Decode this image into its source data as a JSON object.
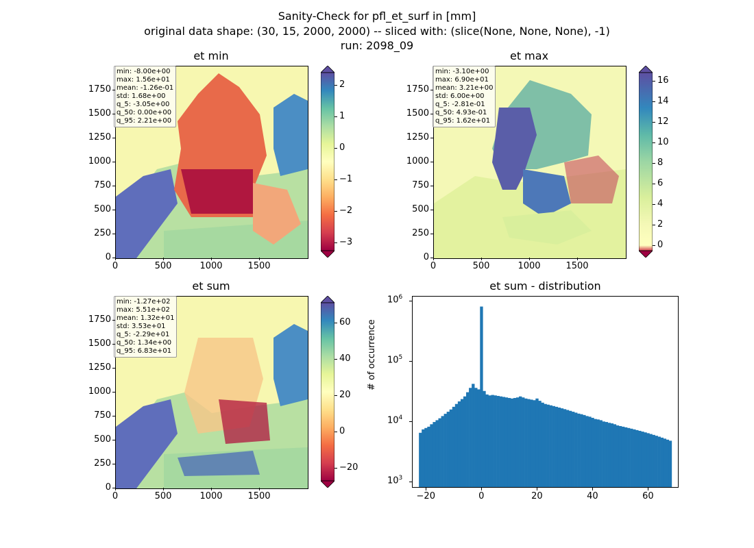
{
  "figure": {
    "title_line1": "Sanity-Check for pfl_et_surf in [mm]",
    "title_line2": "original data shape: (30, 15, 2000, 2000) -- sliced with: (slice(None, None, None), -1)",
    "title_line3": "run: 2098_09"
  },
  "panels": {
    "et_min": {
      "title": "et min",
      "stats": [
        "min: -8.00e+00",
        "max: 1.56e+01",
        "mean: -1.26e-01",
        "std: 1.68e+00",
        "q_5: -3.05e+00",
        "q_50: 0.00e+00",
        "q_95: 2.21e+00"
      ],
      "colorbar_ticks": [
        "2",
        "1",
        "0",
        "−1",
        "−2",
        "−3"
      ],
      "colorbar_range": [
        -3.25,
        2.4
      ]
    },
    "et_max": {
      "title": "et max",
      "stats": [
        "min: -3.10e+00",
        "max: 6.90e+01",
        "mean: 3.21e+00",
        "std: 6.00e+00",
        "q_5: -2.81e-01",
        "q_50: 4.93e-01",
        "q_95: 1.62e+01"
      ],
      "colorbar_ticks": [
        "16",
        "14",
        "12",
        "10",
        "8",
        "6",
        "4",
        "2",
        "0"
      ],
      "colorbar_range": [
        -0.5,
        16.8
      ]
    },
    "et_sum": {
      "title": "et sum",
      "stats": [
        "min: -1.27e+02",
        "max: 5.51e+02",
        "mean: 1.32e+01",
        "std: 3.53e+01",
        "q_5: -2.29e+01",
        "q_50: 1.34e+00",
        "q_95: 6.83e+01"
      ],
      "colorbar_ticks": [
        "60",
        "40",
        "20",
        "0",
        "−20"
      ],
      "colorbar_range": [
        -27,
        71
      ]
    },
    "map_axes": {
      "x_ticks": [
        "0",
        "500",
        "1000",
        "1500"
      ],
      "y_ticks": [
        "1750",
        "1500",
        "1250",
        "1000",
        "750",
        "500",
        "250",
        "0"
      ]
    }
  },
  "chart_data": {
    "type": "bar",
    "title": "et sum - distribution",
    "xlabel": "",
    "ylabel": "# of occurrence",
    "yscale": "log",
    "ylim": [
      800,
      1200000
    ],
    "xlim": [
      -25,
      71
    ],
    "x_ticks": [
      "−20",
      "0",
      "20",
      "40",
      "60"
    ],
    "y_ticks": [
      "10^6",
      "10^5",
      "10^4",
      "10^3"
    ],
    "color": "#1f77b4",
    "x": [
      -22,
      -21,
      -20,
      -19,
      -18,
      -17,
      -16,
      -15,
      -14,
      -13,
      -12,
      -11,
      -10,
      -9,
      -8,
      -7,
      -6,
      -5,
      -4,
      -3,
      -2,
      -1,
      0,
      1,
      2,
      3,
      4,
      5,
      6,
      7,
      8,
      9,
      10,
      11,
      12,
      13,
      14,
      15,
      16,
      17,
      18,
      19,
      20,
      21,
      22,
      23,
      24,
      25,
      26,
      27,
      28,
      29,
      30,
      31,
      32,
      33,
      34,
      35,
      36,
      37,
      38,
      39,
      40,
      41,
      42,
      43,
      44,
      45,
      46,
      47,
      48,
      49,
      50,
      51,
      52,
      53,
      54,
      55,
      56,
      57,
      58,
      59,
      60,
      61,
      62,
      63,
      64,
      65,
      66,
      67,
      68
    ],
    "values": [
      6500,
      7400,
      7800,
      8200,
      9000,
      9800,
      10500,
      11300,
      12300,
      13400,
      14500,
      15800,
      17500,
      19500,
      21500,
      23500,
      26000,
      30500,
      36000,
      42000,
      36000,
      34000,
      800000,
      32000,
      28000,
      27000,
      27500,
      27000,
      26500,
      26000,
      25500,
      25000,
      24500,
      24000,
      24500,
      25000,
      26000,
      25000,
      24000,
      23500,
      23000,
      22500,
      24000,
      22000,
      20500,
      19500,
      19000,
      18500,
      18000,
      17500,
      17000,
      16500,
      16000,
      15500,
      15000,
      14500,
      14000,
      13500,
      13200,
      12800,
      12300,
      12000,
      11500,
      11000,
      10800,
      10500,
      10000,
      9800,
      9500,
      9300,
      9000,
      8600,
      8400,
      8200,
      8000,
      7800,
      7600,
      7400,
      7200,
      7000,
      6800,
      6600,
      6400,
      6200,
      6000,
      5800,
      5600,
      5400,
      5200,
      5000,
      4800
    ]
  }
}
